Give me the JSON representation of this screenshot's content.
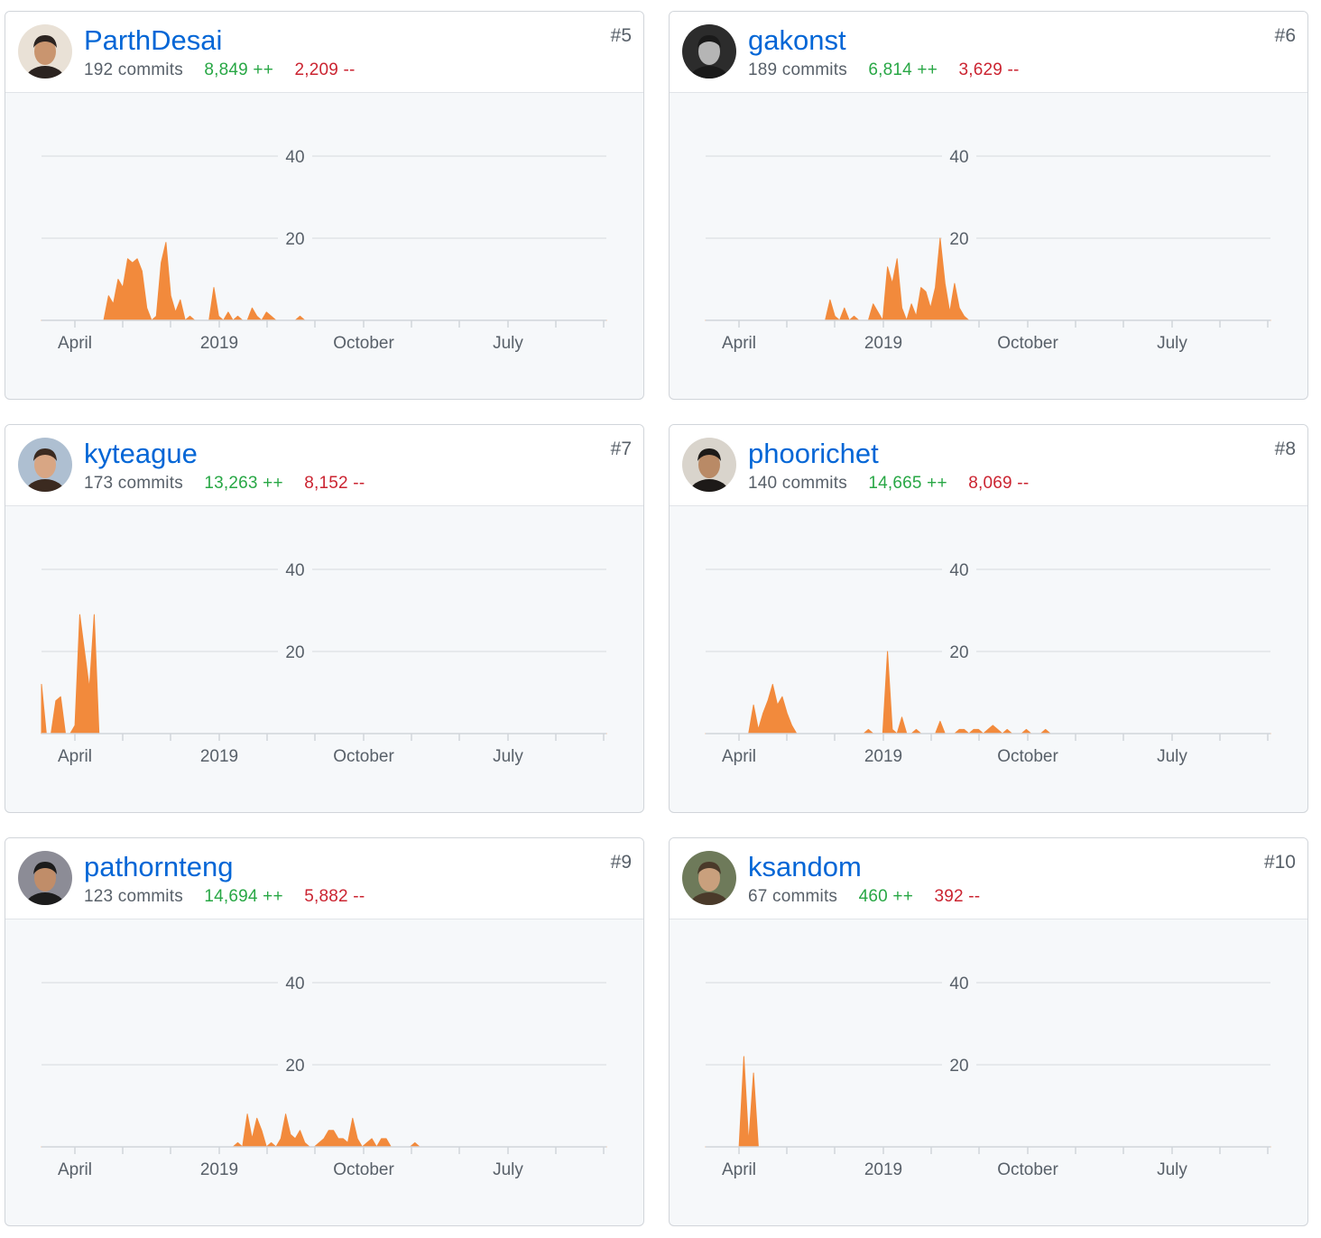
{
  "accent_color": "#f28a3c",
  "link_color": "#0366d6",
  "additions_color": "#28a745",
  "deletions_color": "#cb2431",
  "contributors": [
    {
      "username": "ParthDesai",
      "rank": "#5",
      "commits": "192 commits",
      "additions": "8,849 ++",
      "deletions": "2,209 --",
      "avatar": "avatar-photo",
      "avatar_bg": "#e9e1d6",
      "avatar_face": "#c9956f",
      "avatar_hair": "#2b2320"
    },
    {
      "username": "gakonst",
      "rank": "#6",
      "commits": "189 commits",
      "additions": "6,814 ++",
      "deletions": "3,629 --",
      "avatar": "avatar-photo",
      "avatar_bg": "#2c2c2c",
      "avatar_face": "#b5b5b5",
      "avatar_hair": "#1a1a1a"
    },
    {
      "username": "kyteague",
      "rank": "#7",
      "commits": "173 commits",
      "additions": "13,263 ++",
      "deletions": "8,152 --",
      "avatar": "avatar-photo",
      "avatar_bg": "#aebfd1",
      "avatar_face": "#d8a684",
      "avatar_hair": "#3b2a20"
    },
    {
      "username": "phoorichet",
      "rank": "#8",
      "commits": "140 commits",
      "additions": "14,665 ++",
      "deletions": "8,069 --",
      "avatar": "avatar-photo",
      "avatar_bg": "#d9d4cc",
      "avatar_face": "#b98a66",
      "avatar_hair": "#1d1a18"
    },
    {
      "username": "pathornteng",
      "rank": "#9",
      "commits": "123 commits",
      "additions": "14,694 ++",
      "deletions": "5,882 --",
      "avatar": "avatar-photo",
      "avatar_bg": "#8c8c96",
      "avatar_face": "#c08d69",
      "avatar_hair": "#1c1c1c"
    },
    {
      "username": "ksandom",
      "rank": "#10",
      "commits": "67 commits",
      "additions": "460 ++",
      "deletions": "392 --",
      "avatar": "avatar-photo",
      "avatar_bg": "#6e7a5a",
      "avatar_face": "#c9a07d",
      "avatar_hair": "#4a3a2a"
    }
  ],
  "chart_data": [
    {
      "type": "area",
      "x_tick_labels": [
        "April",
        "2019",
        "October",
        "July"
      ],
      "y_ticks": [
        20,
        40
      ],
      "ylim": [
        0,
        40
      ],
      "grid": true,
      "color": "#f28a3c",
      "x": [
        0,
        13,
        14,
        15,
        16,
        17,
        18,
        19,
        20,
        21,
        22,
        23,
        24,
        25,
        26,
        27,
        28,
        29,
        30,
        31,
        32,
        33,
        34,
        35,
        36,
        37,
        38,
        39,
        40,
        41,
        42,
        43,
        44,
        45,
        46,
        47,
        48,
        49,
        50,
        51,
        52,
        53,
        54,
        55,
        56,
        57,
        58,
        59,
        60,
        61,
        118
      ],
      "values": [
        0,
        0,
        6,
        4,
        10,
        8,
        15,
        14,
        15,
        12,
        3,
        0,
        1,
        14,
        19,
        6,
        2,
        5,
        0,
        1,
        0,
        0,
        0,
        0,
        8,
        1,
        0,
        2,
        0,
        1,
        0,
        0,
        3,
        1,
        0,
        2,
        1,
        0,
        0,
        0,
        0,
        0,
        1,
        0,
        0,
        0,
        0,
        0,
        0,
        0,
        0
      ]
    },
    {
      "type": "area",
      "x_tick_labels": [
        "April",
        "2019",
        "October",
        "July"
      ],
      "y_ticks": [
        20,
        40
      ],
      "ylim": [
        0,
        40
      ],
      "grid": true,
      "color": "#f28a3c",
      "x": [
        0,
        25,
        26,
        27,
        28,
        29,
        30,
        31,
        32,
        33,
        34,
        35,
        36,
        37,
        38,
        39,
        40,
        41,
        42,
        43,
        44,
        45,
        46,
        47,
        48,
        49,
        50,
        51,
        52,
        53,
        54,
        55,
        56,
        57,
        58,
        118
      ],
      "values": [
        0,
        0,
        5,
        1,
        0,
        3,
        0,
        1,
        0,
        0,
        0,
        4,
        2,
        0,
        13,
        9,
        15,
        3,
        0,
        4,
        1,
        8,
        7,
        3,
        8,
        20,
        9,
        2,
        9,
        3,
        1,
        0,
        0,
        0,
        0,
        0
      ]
    },
    {
      "type": "area",
      "x_tick_labels": [
        "April",
        "2019",
        "October",
        "July"
      ],
      "y_ticks": [
        20,
        40
      ],
      "ylim": [
        0,
        40
      ],
      "grid": true,
      "color": "#f28a3c",
      "x": [
        0,
        1,
        2,
        3,
        4,
        5,
        6,
        7,
        8,
        9,
        10,
        11,
        12,
        13,
        118
      ],
      "values": [
        12,
        0,
        0,
        8,
        9,
        0,
        0,
        2,
        29,
        20,
        11,
        29,
        0,
        0,
        0
      ]
    },
    {
      "type": "area",
      "x_tick_labels": [
        "April",
        "2019",
        "October",
        "July"
      ],
      "y_ticks": [
        20,
        40
      ],
      "ylim": [
        0,
        40
      ],
      "grid": true,
      "color": "#f28a3c",
      "x": [
        0,
        9,
        10,
        11,
        12,
        13,
        14,
        15,
        16,
        17,
        18,
        19,
        20,
        33,
        34,
        35,
        36,
        37,
        38,
        39,
        40,
        41,
        42,
        43,
        44,
        45,
        46,
        47,
        48,
        49,
        50,
        51,
        52,
        53,
        54,
        55,
        56,
        57,
        58,
        59,
        60,
        61,
        62,
        63,
        64,
        65,
        66,
        67,
        68,
        69,
        70,
        71,
        72,
        118
      ],
      "values": [
        0,
        0,
        7,
        1,
        5,
        8,
        12,
        7,
        9,
        5,
        2,
        0,
        0,
        0,
        1,
        0,
        0,
        0,
        20,
        1,
        0,
        4,
        0,
        0,
        1,
        0,
        0,
        0,
        0,
        3,
        0,
        0,
        0,
        1,
        1,
        0,
        1,
        1,
        0,
        1,
        2,
        1,
        0,
        1,
        0,
        0,
        0,
        1,
        0,
        0,
        0,
        1,
        0,
        0
      ]
    },
    {
      "type": "area",
      "x_tick_labels": [
        "April",
        "2019",
        "October",
        "July"
      ],
      "y_ticks": [
        20,
        40
      ],
      "ylim": [
        0,
        40
      ],
      "grid": true,
      "color": "#f28a3c",
      "x": [
        0,
        40,
        41,
        42,
        43,
        44,
        45,
        46,
        47,
        48,
        49,
        50,
        51,
        52,
        53,
        54,
        55,
        56,
        57,
        58,
        59,
        60,
        61,
        62,
        63,
        64,
        65,
        66,
        67,
        68,
        69,
        70,
        71,
        72,
        73,
        74,
        75,
        76,
        77,
        78,
        79,
        80,
        81,
        82,
        118
      ],
      "values": [
        0,
        0,
        1,
        0,
        8,
        2,
        7,
        4,
        0,
        1,
        0,
        2,
        8,
        3,
        2,
        4,
        1,
        0,
        0,
        1,
        2,
        4,
        4,
        2,
        2,
        1,
        7,
        2,
        0,
        1,
        2,
        0,
        2,
        2,
        0,
        0,
        0,
        0,
        0,
        1,
        0,
        0,
        0,
        0,
        0
      ]
    },
    {
      "type": "area",
      "x_tick_labels": [
        "April",
        "2019",
        "October",
        "July"
      ],
      "y_ticks": [
        20,
        40
      ],
      "ylim": [
        0,
        40
      ],
      "grid": true,
      "color": "#f28a3c",
      "x": [
        0,
        7,
        8,
        9,
        10,
        11,
        12,
        118
      ],
      "values": [
        0,
        0,
        22,
        1,
        18,
        0,
        0,
        0
      ]
    }
  ]
}
